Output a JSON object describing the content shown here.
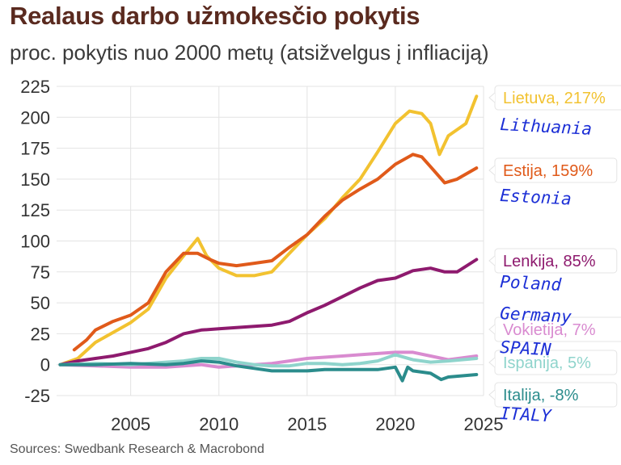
{
  "title": "Realaus darbo užmokesčio pokytis",
  "subtitle": "proc. pokytis nuo 2000 metų (atsižvelgus į infliaciją)",
  "source": "Sources: Swedbank Research & Macrobond",
  "chart_data": {
    "type": "line",
    "xlim": [
      2000.8,
      2025
    ],
    "ylim": [
      -25,
      225
    ],
    "yticks": [
      -25,
      0,
      25,
      50,
      75,
      100,
      125,
      150,
      175,
      200,
      225
    ],
    "xticks": [
      2005,
      2010,
      2015,
      2020,
      2025
    ],
    "grid": true,
    "legend_placement": "right, end-of-line labels",
    "series": [
      {
        "name": "Lietuva",
        "label": "Lietuva, 217%",
        "annotation": "Lithuania",
        "color": "#f2c230",
        "points": [
          [
            2001,
            0
          ],
          [
            2002,
            5
          ],
          [
            2003,
            18
          ],
          [
            2004,
            26
          ],
          [
            2005,
            34
          ],
          [
            2006,
            45
          ],
          [
            2007,
            70
          ],
          [
            2008,
            88
          ],
          [
            2008.8,
            102
          ],
          [
            2009.3,
            88
          ],
          [
            2010,
            78
          ],
          [
            2011,
            72
          ],
          [
            2012,
            72
          ],
          [
            2013,
            75
          ],
          [
            2014,
            90
          ],
          [
            2015,
            105
          ],
          [
            2016,
            118
          ],
          [
            2017,
            135
          ],
          [
            2018,
            150
          ],
          [
            2019,
            172
          ],
          [
            2020,
            195
          ],
          [
            2020.8,
            205
          ],
          [
            2021.5,
            203
          ],
          [
            2022,
            195
          ],
          [
            2022.5,
            170
          ],
          [
            2023,
            185
          ],
          [
            2024,
            195
          ],
          [
            2024.6,
            217
          ]
        ]
      },
      {
        "name": "Estija",
        "label": "Estija, 159%",
        "annotation": "Estonia",
        "color": "#e05a1a",
        "points": [
          [
            2001.8,
            12
          ],
          [
            2002.5,
            20
          ],
          [
            2003,
            28
          ],
          [
            2004,
            35
          ],
          [
            2005,
            40
          ],
          [
            2006,
            50
          ],
          [
            2007,
            75
          ],
          [
            2008,
            90
          ],
          [
            2008.8,
            90
          ],
          [
            2009.5,
            85
          ],
          [
            2010,
            82
          ],
          [
            2011,
            80
          ],
          [
            2012,
            82
          ],
          [
            2013,
            84
          ],
          [
            2014,
            95
          ],
          [
            2015,
            105
          ],
          [
            2016,
            120
          ],
          [
            2017,
            133
          ],
          [
            2018,
            142
          ],
          [
            2019,
            150
          ],
          [
            2020,
            162
          ],
          [
            2021,
            170
          ],
          [
            2021.5,
            168
          ],
          [
            2022,
            160
          ],
          [
            2022.8,
            147
          ],
          [
            2023.5,
            150
          ],
          [
            2024.6,
            159
          ]
        ]
      },
      {
        "name": "Lenkija",
        "label": "Lenkija, 85%",
        "annotation": "Poland",
        "color": "#8e1a6e",
        "points": [
          [
            2001,
            0
          ],
          [
            2002,
            3
          ],
          [
            2003,
            5
          ],
          [
            2004,
            7
          ],
          [
            2005,
            10
          ],
          [
            2006,
            13
          ],
          [
            2007,
            18
          ],
          [
            2008,
            25
          ],
          [
            2009,
            28
          ],
          [
            2010,
            29
          ],
          [
            2011,
            30
          ],
          [
            2012,
            31
          ],
          [
            2013,
            32
          ],
          [
            2014,
            35
          ],
          [
            2015,
            42
          ],
          [
            2016,
            48
          ],
          [
            2017,
            55
          ],
          [
            2018,
            62
          ],
          [
            2019,
            68
          ],
          [
            2020,
            70
          ],
          [
            2021,
            76
          ],
          [
            2022,
            78
          ],
          [
            2022.8,
            75
          ],
          [
            2023.5,
            75
          ],
          [
            2024.6,
            85
          ]
        ]
      },
      {
        "name": "Vokietija",
        "label": "Vokietija, 7%",
        "annotation": "Germany",
        "color": "#d98bd0",
        "points": [
          [
            2001,
            0
          ],
          [
            2003,
            -1
          ],
          [
            2005,
            -2
          ],
          [
            2007,
            -2
          ],
          [
            2009,
            0
          ],
          [
            2010,
            -2
          ],
          [
            2011,
            -1
          ],
          [
            2012,
            0
          ],
          [
            2013,
            1
          ],
          [
            2014,
            3
          ],
          [
            2015,
            5
          ],
          [
            2016,
            6
          ],
          [
            2017,
            7
          ],
          [
            2018,
            8
          ],
          [
            2019,
            9
          ],
          [
            2020,
            10
          ],
          [
            2021,
            10
          ],
          [
            2022,
            7
          ],
          [
            2023,
            4
          ],
          [
            2024.6,
            7
          ]
        ]
      },
      {
        "name": "Ispanija",
        "label": "Ispanija, 5%",
        "annotation": "SPAIN",
        "color": "#8fd4cc",
        "points": [
          [
            2001,
            0
          ],
          [
            2003,
            1
          ],
          [
            2005,
            0
          ],
          [
            2007,
            2
          ],
          [
            2008,
            3
          ],
          [
            2009,
            5
          ],
          [
            2010,
            5
          ],
          [
            2011,
            2
          ],
          [
            2012,
            0
          ],
          [
            2013,
            -1
          ],
          [
            2014,
            -1
          ],
          [
            2015,
            1
          ],
          [
            2016,
            1
          ],
          [
            2017,
            0
          ],
          [
            2018,
            1
          ],
          [
            2019,
            3
          ],
          [
            2020,
            8
          ],
          [
            2021,
            4
          ],
          [
            2022,
            2
          ],
          [
            2023,
            3
          ],
          [
            2024.6,
            5
          ]
        ]
      },
      {
        "name": "Italija",
        "label": "Italija, -8%",
        "annotation": "ITALY",
        "color": "#2b8c8c",
        "points": [
          [
            2001,
            0
          ],
          [
            2003,
            0
          ],
          [
            2005,
            1
          ],
          [
            2007,
            0
          ],
          [
            2008,
            1
          ],
          [
            2009,
            3
          ],
          [
            2010,
            2
          ],
          [
            2011,
            -1
          ],
          [
            2012,
            -3
          ],
          [
            2013,
            -5
          ],
          [
            2014,
            -5
          ],
          [
            2015,
            -5
          ],
          [
            2016,
            -4
          ],
          [
            2017,
            -4
          ],
          [
            2018,
            -4
          ],
          [
            2019,
            -4
          ],
          [
            2020,
            -2
          ],
          [
            2020.4,
            -13
          ],
          [
            2020.7,
            -2
          ],
          [
            2021,
            -5
          ],
          [
            2022,
            -7
          ],
          [
            2022.6,
            -12
          ],
          [
            2023,
            -10
          ],
          [
            2024.6,
            -8
          ]
        ]
      }
    ]
  }
}
